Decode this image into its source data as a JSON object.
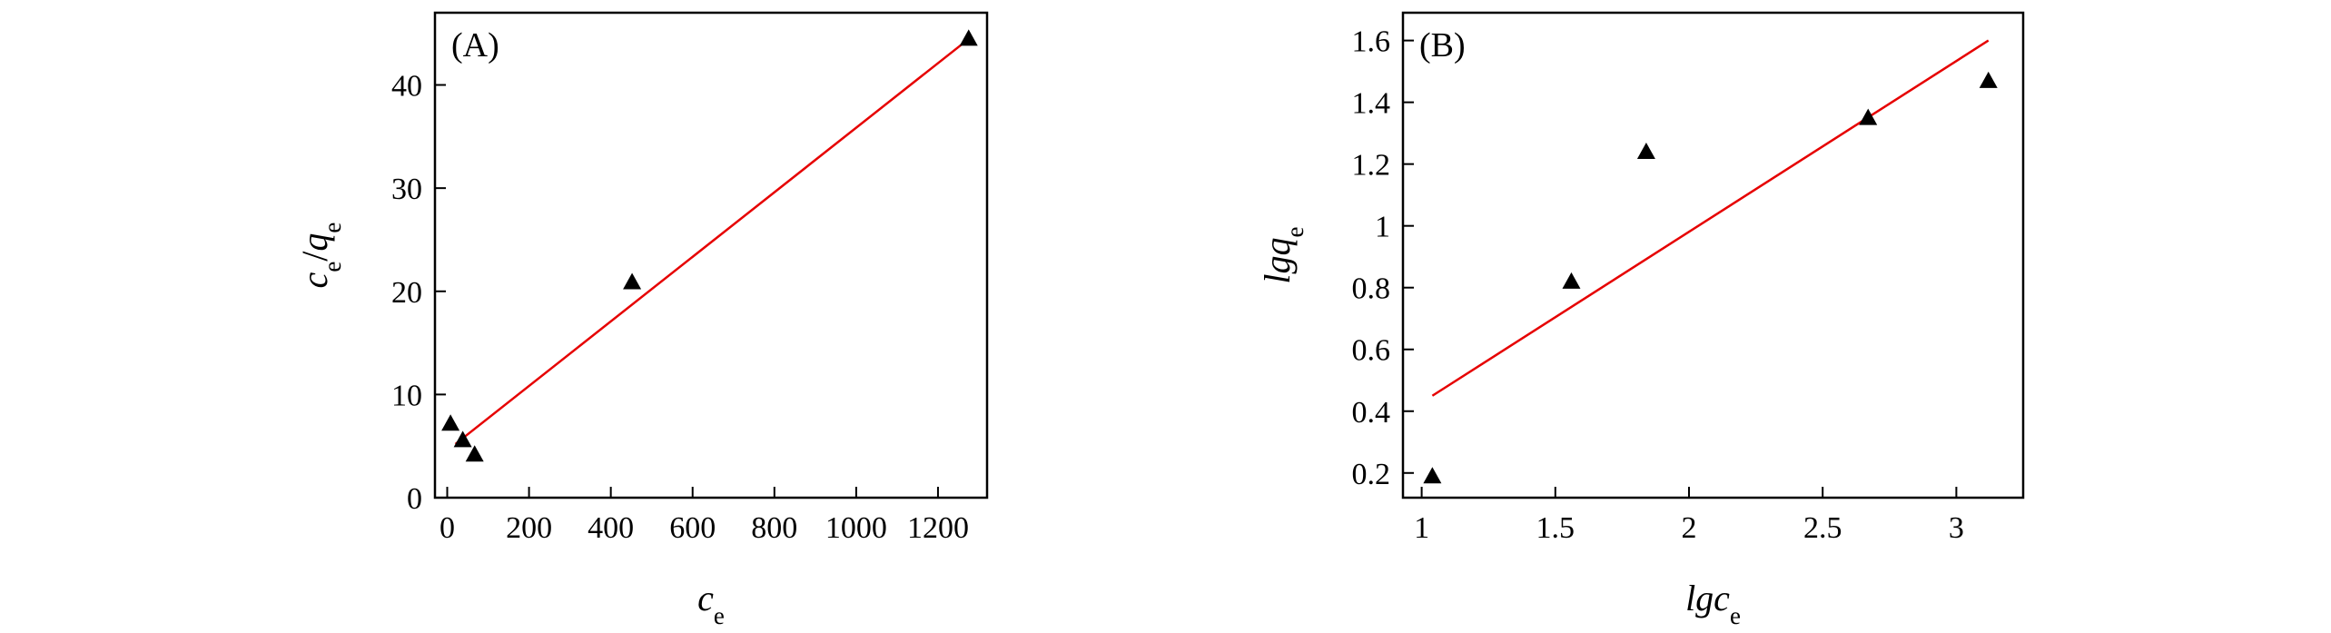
{
  "chart_data": [
    {
      "type": "scatter",
      "panel_label": "(A)",
      "xlabel": {
        "main": "c",
        "sub": "e"
      },
      "ylabel": {
        "main1": "c",
        "sub1": "e",
        "sep": "/",
        "main2": "q",
        "sub2": "e"
      },
      "xlim": [
        -30,
        1320
      ],
      "ylim": [
        0,
        47
      ],
      "xticks": [
        0,
        200,
        400,
        600,
        800,
        1000,
        1200
      ],
      "yticks": [
        0,
        10,
        20,
        30,
        40
      ],
      "grid": false,
      "points": [
        {
          "x": 8,
          "y": 7.2
        },
        {
          "x": 38,
          "y": 5.6
        },
        {
          "x": 67,
          "y": 4.2
        },
        {
          "x": 452,
          "y": 20.9
        },
        {
          "x": 1275,
          "y": 44.5
        }
      ],
      "fit_line": {
        "x": [
          20,
          1270
        ],
        "y": [
          5.2,
          44.3
        ],
        "color": "#e60000"
      },
      "marker_color": "#000000"
    },
    {
      "type": "scatter",
      "panel_label": "(B)",
      "xlabel": {
        "main": "lgc",
        "sub": "e"
      },
      "ylabel": {
        "main": "lgq",
        "sub": "e"
      },
      "xlim": [
        0.93,
        3.25
      ],
      "ylim": [
        0.12,
        1.69
      ],
      "xticks": [
        1.0,
        1.5,
        2.0,
        2.5,
        3.0
      ],
      "yticks": [
        0.2,
        0.4,
        0.6,
        0.8,
        1.0,
        1.2,
        1.4,
        1.6
      ],
      "grid": false,
      "points": [
        {
          "x": 1.04,
          "y": 0.19
        },
        {
          "x": 1.56,
          "y": 0.82
        },
        {
          "x": 1.84,
          "y": 1.24
        },
        {
          "x": 2.67,
          "y": 1.35
        },
        {
          "x": 3.12,
          "y": 1.47
        }
      ],
      "fit_line": {
        "x": [
          1.04,
          3.12
        ],
        "y": [
          0.45,
          1.6
        ],
        "color": "#e60000"
      },
      "marker_color": "#000000"
    }
  ]
}
